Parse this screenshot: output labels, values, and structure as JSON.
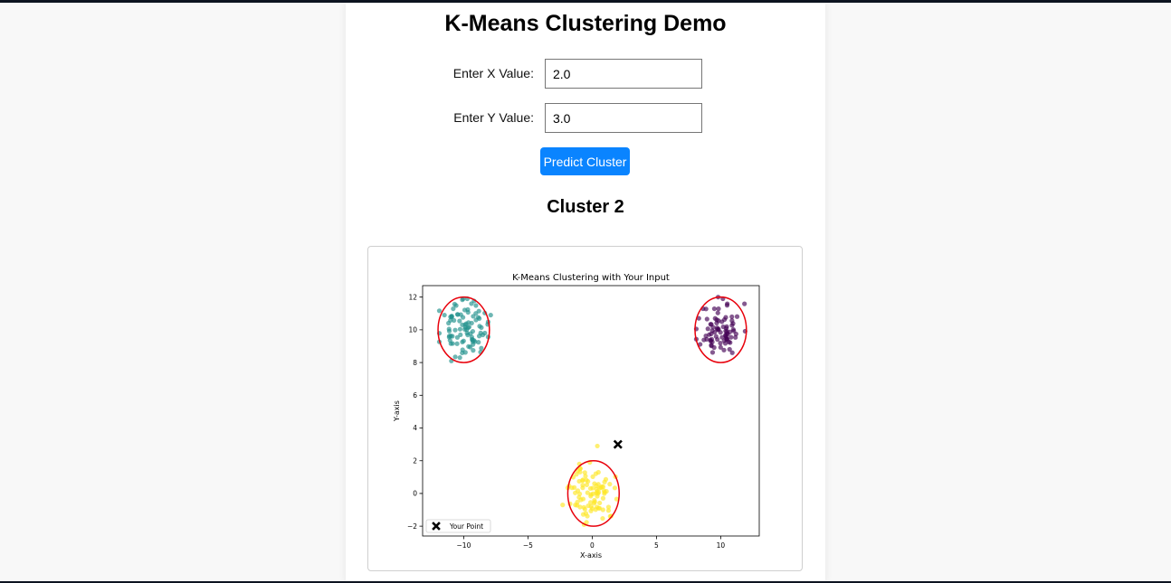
{
  "page": {
    "title": "K-Means Clustering Demo"
  },
  "form": {
    "x_label": "Enter X Value:",
    "x_value": "2.0",
    "y_label": "Enter Y Value:",
    "y_value": "3.0",
    "submit_label": "Predict Cluster"
  },
  "result": {
    "text": "Cluster 2"
  },
  "chart_data": {
    "type": "scatter",
    "title": "K-Means Clustering with Your Input",
    "xlabel": "X-axis",
    "ylabel": "Y-axis",
    "xlim": [
      -13.2,
      13.0
    ],
    "ylim": [
      -2.6,
      12.7
    ],
    "x_ticks": [
      -10,
      -5,
      0,
      5,
      10
    ],
    "x_tick_labels": [
      "−10",
      "−5",
      "0",
      "5",
      "10"
    ],
    "y_ticks": [
      -2,
      0,
      2,
      4,
      6,
      8,
      10,
      12
    ],
    "y_tick_labels": [
      "−2",
      "0",
      "2",
      "4",
      "6",
      "8",
      "10",
      "12"
    ],
    "grid": false,
    "legend_position": "bottom-left",
    "legend_entries": [
      "Your Point"
    ],
    "clusters": [
      {
        "center": [
          10.0,
          10.0
        ],
        "color": "#440154",
        "spread": [
          0.8,
          0.8
        ],
        "n": 80,
        "seed": 11,
        "extra": [
          [
            9.8,
            12.0
          ],
          [
            8.3,
            10.7
          ],
          [
            10.9,
            8.6
          ]
        ]
      },
      {
        "center": [
          -10.0,
          10.0
        ],
        "color": "#21918c",
        "spread": [
          0.9,
          0.8
        ],
        "n": 90,
        "seed": 23,
        "extra": [
          [
            -7.9,
            10.9
          ],
          [
            -11.5,
            10.9
          ],
          [
            -10.3,
            8.3
          ],
          [
            -9.4,
            11.6
          ]
        ]
      },
      {
        "center": [
          0.0,
          0.0
        ],
        "color": "#fde725",
        "spread": [
          0.85,
          0.8
        ],
        "n": 90,
        "seed": 37,
        "extra": [
          [
            0.4,
            2.9
          ],
          [
            -2.3,
            -0.7
          ],
          [
            1.4,
            -1.4
          ],
          [
            -1.0,
            1.8
          ]
        ]
      }
    ],
    "boundaries": [
      {
        "center": [
          10.0,
          10.0
        ],
        "rx": 2.0,
        "ry": 2.0,
        "color": "#e8000b"
      },
      {
        "center": [
          -10.0,
          10.0
        ],
        "rx": 2.0,
        "ry": 2.0,
        "color": "#e8000b"
      },
      {
        "center": [
          0.1,
          0.0
        ],
        "rx": 2.0,
        "ry": 2.0,
        "color": "#e8000b"
      }
    ],
    "user_point": {
      "x": 2.0,
      "y": 3.0,
      "label": "Your Point",
      "color": "#000000"
    }
  }
}
